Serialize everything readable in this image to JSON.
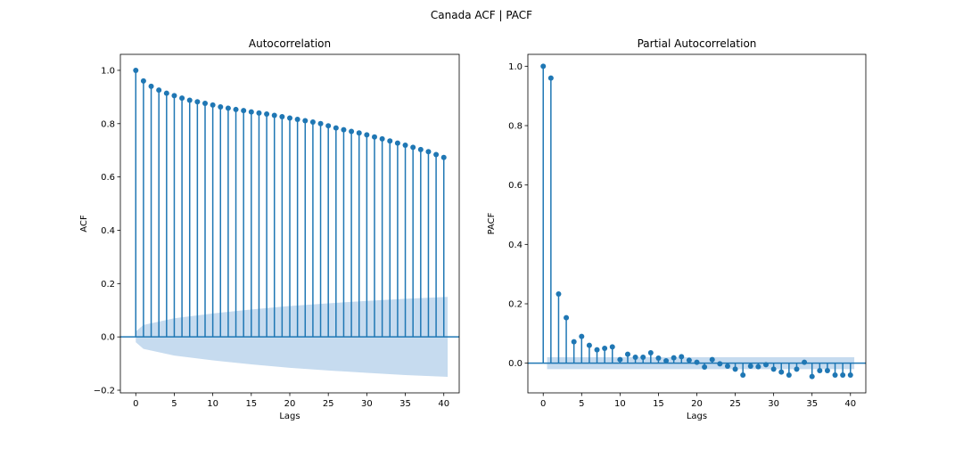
{
  "figure": {
    "suptitle": "Canada ACF | PACF"
  },
  "colors": {
    "stem": "#1f77b4",
    "band": "#c6dbef",
    "axis": "#000000"
  },
  "chart_data": [
    {
      "type": "stem",
      "title": "Autocorrelation",
      "xlabel": "Lags",
      "ylabel": "ACF",
      "xlim": [
        -2,
        42
      ],
      "ylim": [
        -0.21,
        1.06
      ],
      "xticks": [
        0,
        5,
        10,
        15,
        20,
        25,
        30,
        35,
        40
      ],
      "yticks": [
        -0.2,
        0.0,
        0.2,
        0.4,
        0.6,
        0.8,
        1.0
      ],
      "ytick_labels": [
        "−0.2",
        "0.0",
        "0.2",
        "0.4",
        "0.6",
        "0.8",
        "1.0"
      ],
      "lags": [
        0,
        1,
        2,
        3,
        4,
        5,
        6,
        7,
        8,
        9,
        10,
        11,
        12,
        13,
        14,
        15,
        16,
        17,
        18,
        19,
        20,
        21,
        22,
        23,
        24,
        25,
        26,
        27,
        28,
        29,
        30,
        31,
        32,
        33,
        34,
        35,
        36,
        37,
        38,
        39,
        40
      ],
      "values": [
        1.0,
        0.96,
        0.94,
        0.926,
        0.914,
        0.905,
        0.896,
        0.888,
        0.882,
        0.876,
        0.87,
        0.863,
        0.858,
        0.853,
        0.849,
        0.844,
        0.84,
        0.836,
        0.831,
        0.826,
        0.821,
        0.816,
        0.811,
        0.806,
        0.8,
        0.792,
        0.784,
        0.777,
        0.771,
        0.765,
        0.758,
        0.75,
        0.743,
        0.735,
        0.727,
        0.719,
        0.711,
        0.703,
        0.695,
        0.684,
        0.673
      ],
      "conf_band": {
        "lags": [
          0,
          1,
          5,
          10,
          15,
          20,
          25,
          30,
          35,
          40.5
        ],
        "upper": [
          0.02,
          0.045,
          0.07,
          0.088,
          0.103,
          0.116,
          0.126,
          0.135,
          0.143,
          0.15
        ],
        "lower": [
          -0.02,
          -0.045,
          -0.07,
          -0.088,
          -0.103,
          -0.116,
          -0.126,
          -0.135,
          -0.143,
          -0.15
        ]
      }
    },
    {
      "type": "stem",
      "title": "Partial Autocorrelation",
      "xlabel": "Lags",
      "ylabel": "PACF",
      "xlim": [
        -2,
        42
      ],
      "ylim": [
        -0.1,
        1.04
      ],
      "xticks": [
        0,
        5,
        10,
        15,
        20,
        25,
        30,
        35,
        40
      ],
      "yticks": [
        0.0,
        0.2,
        0.4,
        0.6,
        0.8,
        1.0
      ],
      "ytick_labels": [
        "0.0",
        "0.2",
        "0.4",
        "0.6",
        "0.8",
        "1.0"
      ],
      "lags": [
        0,
        1,
        2,
        3,
        4,
        5,
        6,
        7,
        8,
        9,
        10,
        11,
        12,
        13,
        14,
        15,
        16,
        17,
        18,
        19,
        20,
        21,
        22,
        23,
        24,
        25,
        26,
        27,
        28,
        29,
        30,
        31,
        32,
        33,
        34,
        35,
        36,
        37,
        38,
        39,
        40
      ],
      "values": [
        1.0,
        0.96,
        0.233,
        0.153,
        0.072,
        0.09,
        0.06,
        0.045,
        0.05,
        0.055,
        0.012,
        0.03,
        0.02,
        0.02,
        0.035,
        0.017,
        0.008,
        0.018,
        0.022,
        0.01,
        0.003,
        -0.013,
        0.012,
        -0.002,
        -0.01,
        -0.02,
        -0.04,
        -0.01,
        -0.012,
        -0.005,
        -0.02,
        -0.03,
        -0.04,
        -0.02,
        0.003,
        -0.045,
        -0.025,
        -0.025,
        -0.04,
        -0.04,
        -0.04
      ],
      "conf_band": {
        "lags": [
          0.5,
          40.5
        ],
        "upper": [
          0.02,
          0.02
        ],
        "lower": [
          -0.02,
          -0.02
        ]
      }
    }
  ]
}
